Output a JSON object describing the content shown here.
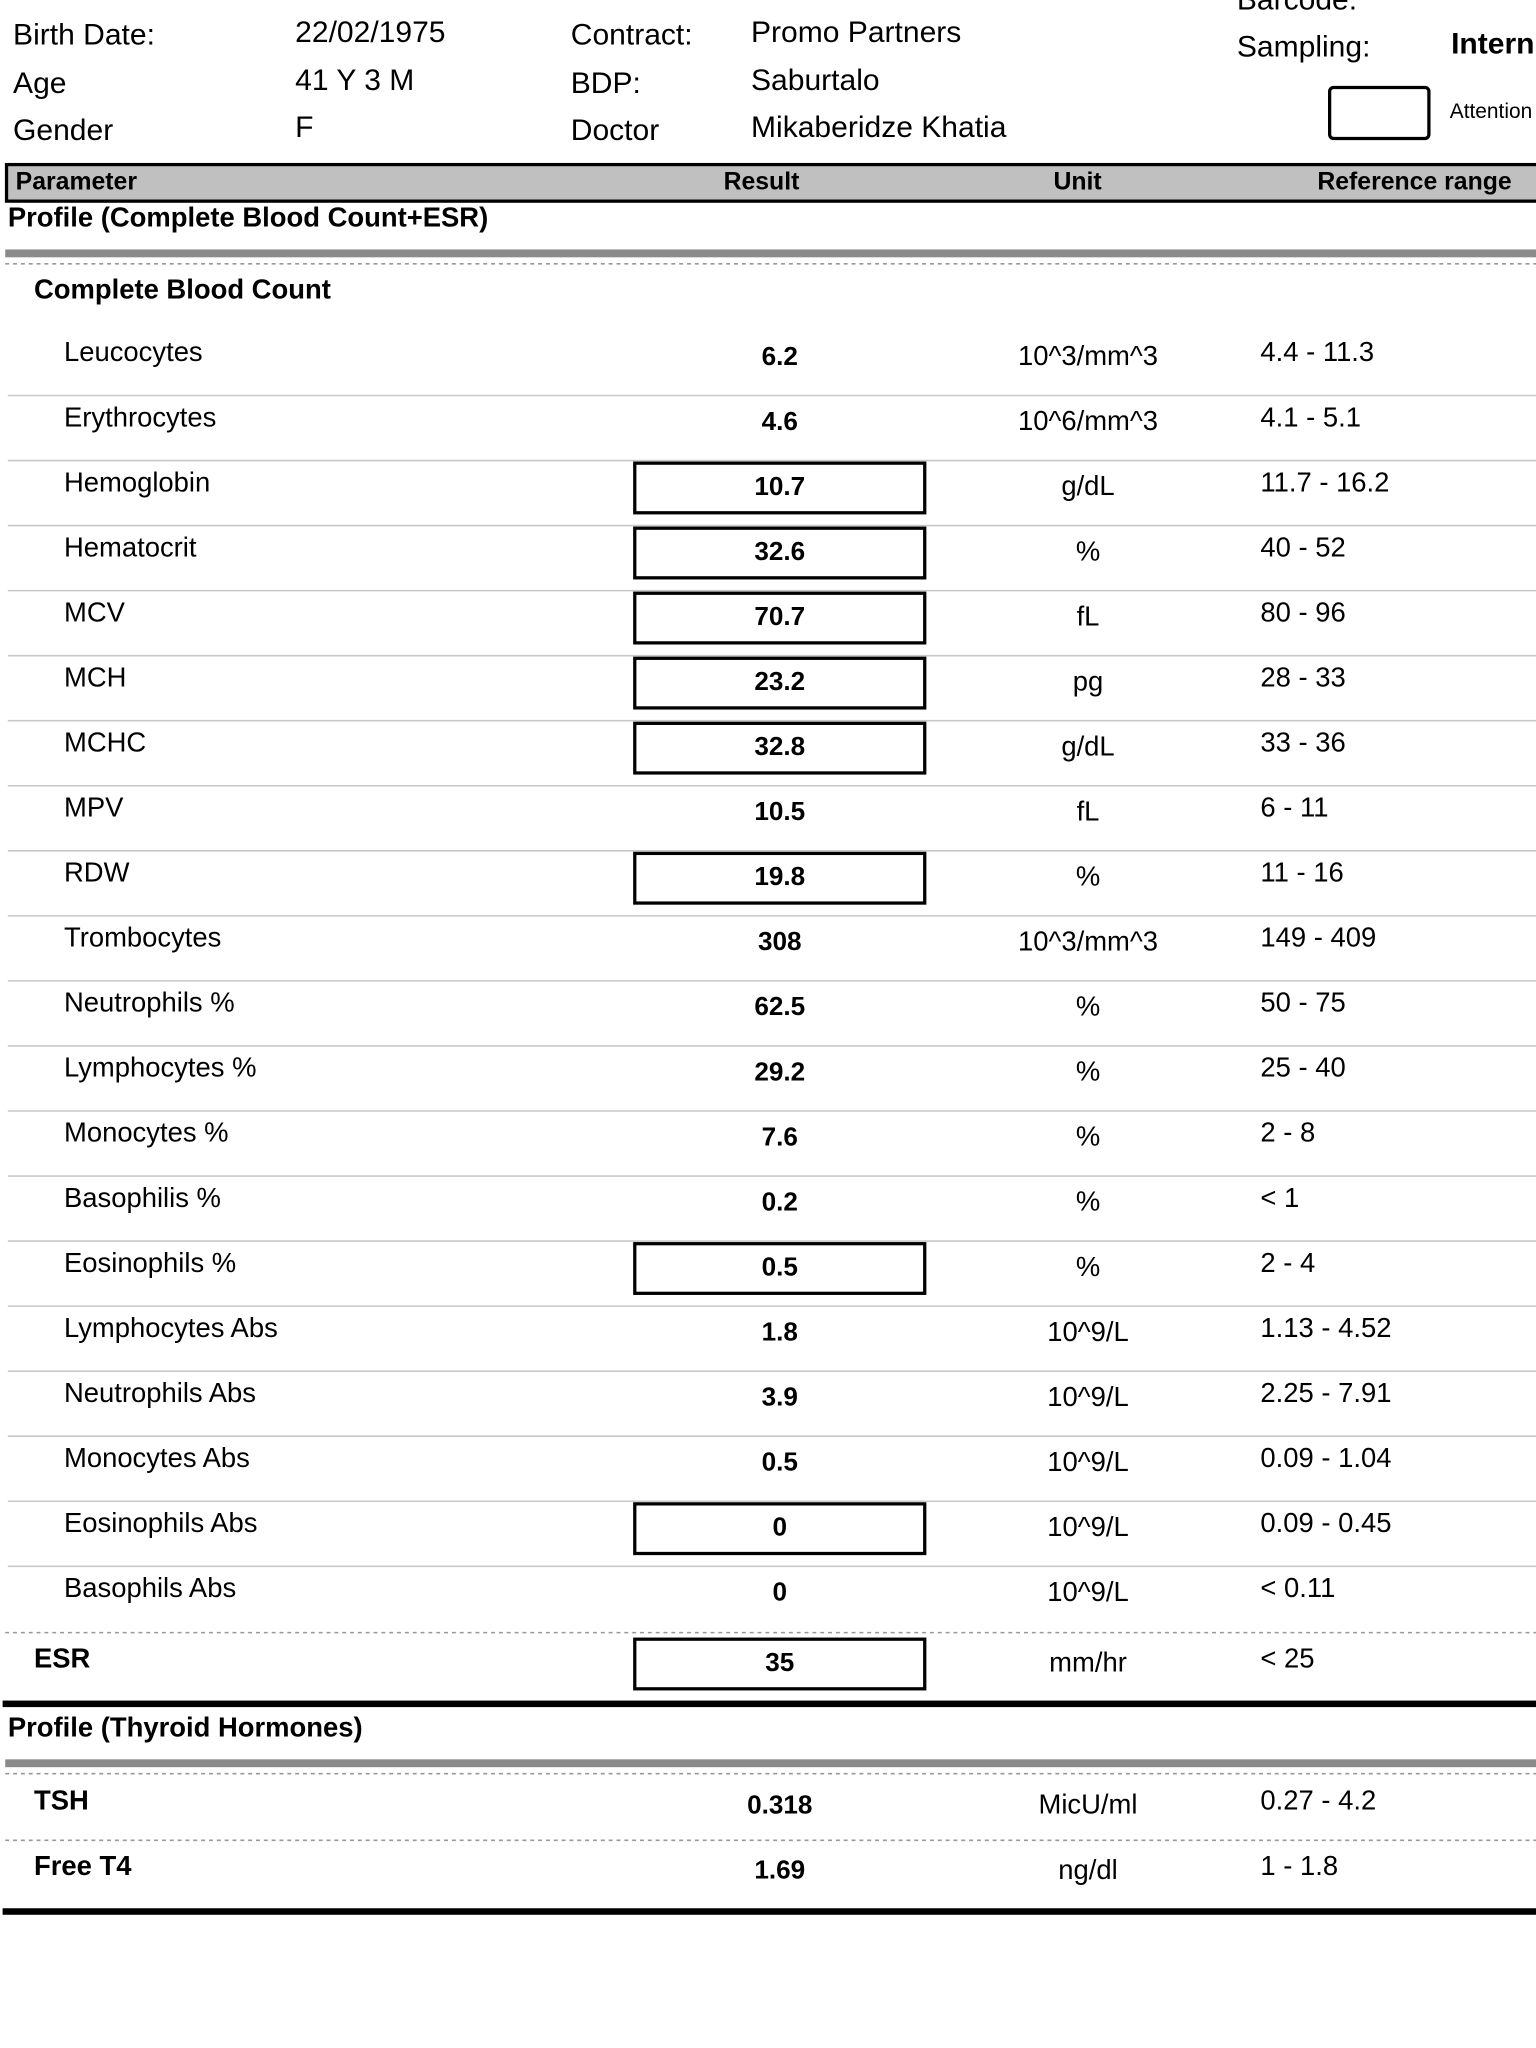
{
  "patient": {
    "birth_date_label": "Birth Date:",
    "birth_date": "22/02/1975",
    "age_label": "Age",
    "age": "41 Y 3 M",
    "gender_label": "Gender",
    "gender": "F"
  },
  "order": {
    "contract_label": "Contract:",
    "contract": "Promo Partners",
    "bdp_label": "BDP:",
    "bdp": "Saburtalo",
    "doctor_label": "Doctor",
    "doctor": "Mikaberidze Khatia"
  },
  "sample": {
    "barcode_label": "Barcode:",
    "sampling_label": "Sampling:",
    "sampling": "Intern",
    "attention": "Attention"
  },
  "table": {
    "columns": [
      "Parameter",
      "Result",
      "Unit",
      "Reference range"
    ],
    "sections": [
      {
        "title": "Profile (Complete Blood Count+ESR)",
        "groups": [
          {
            "title": "Complete Blood Count",
            "rows": [
              {
                "name": "Leucocytes",
                "result": "6.2",
                "unit": "10^3/mm^3",
                "range": "4.4 - 11.3",
                "flagged": false
              },
              {
                "name": "Erythrocytes",
                "result": "4.6",
                "unit": "10^6/mm^3",
                "range": "4.1 - 5.1",
                "flagged": false
              },
              {
                "name": "Hemoglobin",
                "result": "10.7",
                "unit": "g/dL",
                "range": "11.7 - 16.2",
                "flagged": true
              },
              {
                "name": "Hematocrit",
                "result": "32.6",
                "unit": "%",
                "range": "40 - 52",
                "flagged": true
              },
              {
                "name": "MCV",
                "result": "70.7",
                "unit": "fL",
                "range": "80 - 96",
                "flagged": true
              },
              {
                "name": "MCH",
                "result": "23.2",
                "unit": "pg",
                "range": "28 - 33",
                "flagged": true
              },
              {
                "name": "MCHC",
                "result": "32.8",
                "unit": "g/dL",
                "range": "33 - 36",
                "flagged": true
              },
              {
                "name": "MPV",
                "result": "10.5",
                "unit": "fL",
                "range": "6 - 11",
                "flagged": false
              },
              {
                "name": "RDW",
                "result": "19.8",
                "unit": "%",
                "range": "11 - 16",
                "flagged": true
              },
              {
                "name": "Trombocytes",
                "result": "308",
                "unit": "10^3/mm^3",
                "range": "149 - 409",
                "flagged": false
              },
              {
                "name": "Neutrophils %",
                "result": "62.5",
                "unit": "%",
                "range": "50 - 75",
                "flagged": false
              },
              {
                "name": "Lymphocytes %",
                "result": "29.2",
                "unit": "%",
                "range": "25 - 40",
                "flagged": false
              },
              {
                "name": "Monocytes %",
                "result": "7.6",
                "unit": "%",
                "range": "2 - 8",
                "flagged": false
              },
              {
                "name": "Basophilis %",
                "result": "0.2",
                "unit": "%",
                "range": "< 1",
                "flagged": false
              },
              {
                "name": "Eosinophils %",
                "result": "0.5",
                "unit": "%",
                "range": "2 - 4",
                "flagged": true
              },
              {
                "name": "Lymphocytes Abs",
                "result": "1.8",
                "unit": "10^9/L",
                "range": "1.13 - 4.52",
                "flagged": false
              },
              {
                "name": "Neutrophils Abs",
                "result": "3.9",
                "unit": "10^9/L",
                "range": "2.25 - 7.91",
                "flagged": false
              },
              {
                "name": "Monocytes Abs",
                "result": "0.5",
                "unit": "10^9/L",
                "range": "0.09 - 1.04",
                "flagged": false
              },
              {
                "name": "Eosinophils Abs",
                "result": "0",
                "unit": "10^9/L",
                "range": "0.09 - 0.45",
                "flagged": true
              },
              {
                "name": "Basophils Abs",
                "result": "0",
                "unit": "10^9/L",
                "range": "< 0.11",
                "flagged": false
              }
            ]
          },
          {
            "rows": [
              {
                "name": "ESR",
                "result": "35",
                "unit": "mm/hr",
                "range": "< 25",
                "flagged": true
              }
            ]
          }
        ]
      },
      {
        "title": "Profile (Thyroid Hormones)",
        "groups": [
          {
            "rows": [
              {
                "name": "TSH",
                "result": "0.318",
                "unit": "MicU/ml",
                "range": "0.27 - 4.2",
                "flagged": false
              },
              {
                "name": "Free T4",
                "result": "1.69",
                "unit": "ng/dl",
                "range": "1 - 1.8",
                "flagged": false
              }
            ]
          }
        ]
      }
    ]
  }
}
